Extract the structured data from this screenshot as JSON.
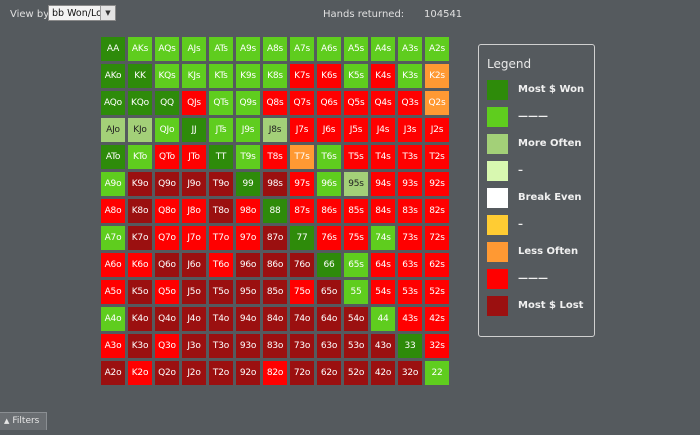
{
  "toolbar": {
    "view_by_label": "View by:",
    "view_by_value": "bb Won/Lost",
    "hands_returned_label": "Hands returned:",
    "hands_returned_value": "104541"
  },
  "colors": {
    "most_won": "#2e8b0a",
    "won": "#5fcd1e",
    "more_often": "#a3d078",
    "slight_won": "#d8f8b0",
    "break_even": "#ffffff",
    "slight_lost": "#ffcc33",
    "less_often": "#ff9933",
    "lost": "#ff0000",
    "most_lost": "#9b1010"
  },
  "grid": {
    "rows": [
      [
        [
          "AA",
          "most_won"
        ],
        [
          "AKs",
          "won"
        ],
        [
          "AQs",
          "won"
        ],
        [
          "AJs",
          "won"
        ],
        [
          "ATs",
          "won"
        ],
        [
          "A9s",
          "won"
        ],
        [
          "A8s",
          "won"
        ],
        [
          "A7s",
          "won"
        ],
        [
          "A6s",
          "won"
        ],
        [
          "A5s",
          "won"
        ],
        [
          "A4s",
          "won"
        ],
        [
          "A3s",
          "won"
        ],
        [
          "A2s",
          "won"
        ]
      ],
      [
        [
          "AKo",
          "most_won"
        ],
        [
          "KK",
          "most_won"
        ],
        [
          "KQs",
          "won"
        ],
        [
          "KJs",
          "won"
        ],
        [
          "KTs",
          "won"
        ],
        [
          "K9s",
          "won"
        ],
        [
          "K8s",
          "won"
        ],
        [
          "K7s",
          "lost"
        ],
        [
          "K6s",
          "lost"
        ],
        [
          "K5s",
          "won"
        ],
        [
          "K4s",
          "lost"
        ],
        [
          "K3s",
          "won"
        ],
        [
          "K2s",
          "less_often"
        ]
      ],
      [
        [
          "AQo",
          "most_won"
        ],
        [
          "KQo",
          "most_won"
        ],
        [
          "QQ",
          "most_won"
        ],
        [
          "QJs",
          "lost"
        ],
        [
          "QTs",
          "won"
        ],
        [
          "Q9s",
          "won"
        ],
        [
          "Q8s",
          "lost"
        ],
        [
          "Q7s",
          "lost"
        ],
        [
          "Q6s",
          "lost"
        ],
        [
          "Q5s",
          "lost"
        ],
        [
          "Q4s",
          "lost"
        ],
        [
          "Q3s",
          "lost"
        ],
        [
          "Q2s",
          "less_often"
        ]
      ],
      [
        [
          "AJo",
          "more_often"
        ],
        [
          "KJo",
          "more_often"
        ],
        [
          "QJo",
          "won"
        ],
        [
          "JJ",
          "most_won"
        ],
        [
          "JTs",
          "won"
        ],
        [
          "J9s",
          "won"
        ],
        [
          "J8s",
          "more_often"
        ],
        [
          "J7s",
          "lost"
        ],
        [
          "J6s",
          "lost"
        ],
        [
          "J5s",
          "lost"
        ],
        [
          "J4s",
          "lost"
        ],
        [
          "J3s",
          "lost"
        ],
        [
          "J2s",
          "lost"
        ]
      ],
      [
        [
          "ATo",
          "most_won"
        ],
        [
          "KTo",
          "won"
        ],
        [
          "QTo",
          "lost"
        ],
        [
          "JTo",
          "lost"
        ],
        [
          "TT",
          "most_won"
        ],
        [
          "T9s",
          "won"
        ],
        [
          "T8s",
          "lost"
        ],
        [
          "T7s",
          "less_often"
        ],
        [
          "T6s",
          "won"
        ],
        [
          "T5s",
          "lost"
        ],
        [
          "T4s",
          "lost"
        ],
        [
          "T3s",
          "lost"
        ],
        [
          "T2s",
          "lost"
        ]
      ],
      [
        [
          "A9o",
          "won"
        ],
        [
          "K9o",
          "most_lost"
        ],
        [
          "Q9o",
          "most_lost"
        ],
        [
          "J9o",
          "most_lost"
        ],
        [
          "T9o",
          "most_lost"
        ],
        [
          "99",
          "most_won"
        ],
        [
          "98s",
          "most_lost"
        ],
        [
          "97s",
          "lost"
        ],
        [
          "96s",
          "won"
        ],
        [
          "95s",
          "more_often"
        ],
        [
          "94s",
          "lost"
        ],
        [
          "93s",
          "lost"
        ],
        [
          "92s",
          "lost"
        ]
      ],
      [
        [
          "A8o",
          "lost"
        ],
        [
          "K8o",
          "most_lost"
        ],
        [
          "Q8o",
          "lost"
        ],
        [
          "J8o",
          "lost"
        ],
        [
          "T8o",
          "most_lost"
        ],
        [
          "98o",
          "lost"
        ],
        [
          "88",
          "most_won"
        ],
        [
          "87s",
          "lost"
        ],
        [
          "86s",
          "lost"
        ],
        [
          "85s",
          "lost"
        ],
        [
          "84s",
          "lost"
        ],
        [
          "83s",
          "lost"
        ],
        [
          "82s",
          "lost"
        ]
      ],
      [
        [
          "A7o",
          "won"
        ],
        [
          "K7o",
          "most_lost"
        ],
        [
          "Q7o",
          "lost"
        ],
        [
          "J7o",
          "lost"
        ],
        [
          "T7o",
          "lost"
        ],
        [
          "97o",
          "lost"
        ],
        [
          "87o",
          "most_lost"
        ],
        [
          "77",
          "most_won"
        ],
        [
          "76s",
          "lost"
        ],
        [
          "75s",
          "lost"
        ],
        [
          "74s",
          "won"
        ],
        [
          "73s",
          "lost"
        ],
        [
          "72s",
          "lost"
        ]
      ],
      [
        [
          "A6o",
          "lost"
        ],
        [
          "K6o",
          "lost"
        ],
        [
          "Q6o",
          "most_lost"
        ],
        [
          "J6o",
          "most_lost"
        ],
        [
          "T6o",
          "lost"
        ],
        [
          "96o",
          "most_lost"
        ],
        [
          "86o",
          "most_lost"
        ],
        [
          "76o",
          "most_lost"
        ],
        [
          "66",
          "most_won"
        ],
        [
          "65s",
          "won"
        ],
        [
          "64s",
          "lost"
        ],
        [
          "63s",
          "lost"
        ],
        [
          "62s",
          "lost"
        ]
      ],
      [
        [
          "A5o",
          "lost"
        ],
        [
          "K5o",
          "most_lost"
        ],
        [
          "Q5o",
          "lost"
        ],
        [
          "J5o",
          "most_lost"
        ],
        [
          "T5o",
          "most_lost"
        ],
        [
          "95o",
          "most_lost"
        ],
        [
          "85o",
          "most_lost"
        ],
        [
          "75o",
          "lost"
        ],
        [
          "65o",
          "most_lost"
        ],
        [
          "55",
          "won"
        ],
        [
          "54s",
          "lost"
        ],
        [
          "53s",
          "lost"
        ],
        [
          "52s",
          "lost"
        ]
      ],
      [
        [
          "A4o",
          "won"
        ],
        [
          "K4o",
          "most_lost"
        ],
        [
          "Q4o",
          "most_lost"
        ],
        [
          "J4o",
          "most_lost"
        ],
        [
          "T4o",
          "most_lost"
        ],
        [
          "94o",
          "most_lost"
        ],
        [
          "84o",
          "most_lost"
        ],
        [
          "74o",
          "most_lost"
        ],
        [
          "64o",
          "most_lost"
        ],
        [
          "54o",
          "most_lost"
        ],
        [
          "44",
          "won"
        ],
        [
          "43s",
          "lost"
        ],
        [
          "42s",
          "lost"
        ]
      ],
      [
        [
          "A3o",
          "lost"
        ],
        [
          "K3o",
          "most_lost"
        ],
        [
          "Q3o",
          "lost"
        ],
        [
          "J3o",
          "most_lost"
        ],
        [
          "T3o",
          "most_lost"
        ],
        [
          "93o",
          "most_lost"
        ],
        [
          "83o",
          "most_lost"
        ],
        [
          "73o",
          "most_lost"
        ],
        [
          "63o",
          "most_lost"
        ],
        [
          "53o",
          "most_lost"
        ],
        [
          "43o",
          "most_lost"
        ],
        [
          "33",
          "most_won"
        ],
        [
          "32s",
          "lost"
        ]
      ],
      [
        [
          "A2o",
          "most_lost"
        ],
        [
          "K2o",
          "lost"
        ],
        [
          "Q2o",
          "most_lost"
        ],
        [
          "J2o",
          "most_lost"
        ],
        [
          "T2o",
          "most_lost"
        ],
        [
          "92o",
          "most_lost"
        ],
        [
          "82o",
          "lost"
        ],
        [
          "72o",
          "most_lost"
        ],
        [
          "62o",
          "most_lost"
        ],
        [
          "52o",
          "most_lost"
        ],
        [
          "42o",
          "most_lost"
        ],
        [
          "32o",
          "most_lost"
        ],
        [
          "22",
          "won"
        ]
      ]
    ]
  },
  "legend": {
    "title": "Legend",
    "items": [
      {
        "label": "Most $ Won",
        "color_key": "most_won"
      },
      {
        "label": "———",
        "color_key": "won"
      },
      {
        "label": "More Often",
        "color_key": "more_often"
      },
      {
        "label": "–",
        "color_key": "slight_won"
      },
      {
        "label": "Break Even",
        "color_key": "break_even"
      },
      {
        "label": "–",
        "color_key": "slight_lost"
      },
      {
        "label": "Less Often",
        "color_key": "less_often"
      },
      {
        "label": "———",
        "color_key": "lost"
      },
      {
        "label": "Most $ Lost",
        "color_key": "most_lost"
      }
    ]
  },
  "footer": {
    "filters_label": "Filters",
    "filters_icon": "chevron-up-icon"
  }
}
